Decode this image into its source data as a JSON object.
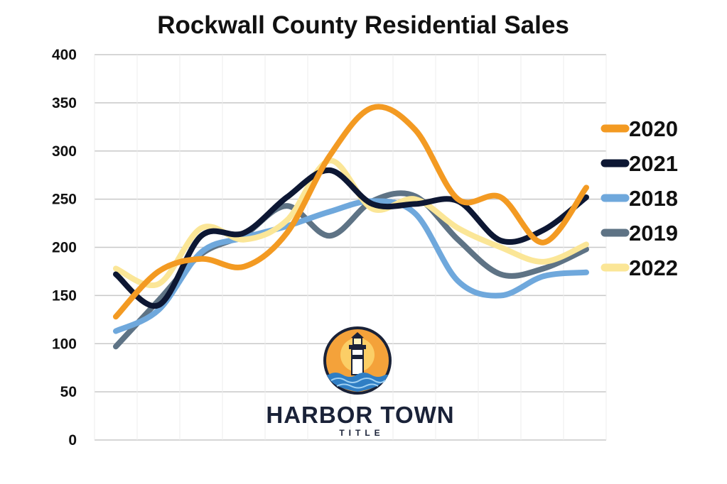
{
  "chart_data": {
    "type": "line",
    "title": "Rockwall County Residential Sales",
    "xlabel": "",
    "ylabel": "",
    "ylim": [
      0,
      400
    ],
    "yticks": [
      "0",
      "50",
      "100",
      "150",
      "200",
      "250",
      "300",
      "350",
      "400"
    ],
    "x": [
      1,
      2,
      3,
      4,
      5,
      6,
      7,
      8,
      9,
      10,
      11,
      12
    ],
    "grid": true,
    "legend_position": "right",
    "series": [
      {
        "name": "2020",
        "color": "#f39a22",
        "values": [
          128,
          175,
          188,
          180,
          215,
          295,
          345,
          322,
          250,
          252,
          205,
          262
        ]
      },
      {
        "name": "2021",
        "color": "#0d1733",
        "values": [
          172,
          140,
          212,
          215,
          252,
          280,
          245,
          245,
          248,
          207,
          218,
          252
        ]
      },
      {
        "name": "2018",
        "color": "#6fa8dc",
        "values": [
          113,
          135,
          195,
          210,
          222,
          237,
          248,
          235,
          165,
          150,
          170,
          174
        ]
      },
      {
        "name": "2019",
        "color": "#5e7385",
        "values": [
          97,
          145,
          193,
          213,
          243,
          212,
          248,
          253,
          208,
          172,
          178,
          198
        ]
      },
      {
        "name": "2022",
        "color": "#fbe697",
        "values": [
          178,
          162,
          220,
          208,
          228,
          290,
          240,
          250,
          220,
          200,
          185,
          203
        ]
      }
    ],
    "legend_order": [
      "2020",
      "2021",
      "2018",
      "2019",
      "2022"
    ]
  },
  "logo": {
    "name": "HARBOR TOWN",
    "sub": "TITLE",
    "icon": "lighthouse-icon"
  }
}
